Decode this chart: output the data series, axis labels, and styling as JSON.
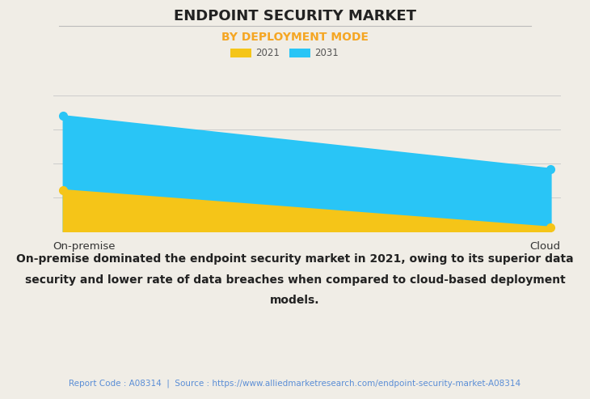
{
  "title": "ENDPOINT SECURITY MARKET",
  "subtitle": "BY DEPLOYMENT MODE",
  "title_fontsize": 13,
  "subtitle_fontsize": 10,
  "title_color": "#222222",
  "subtitle_color": "#F5A623",
  "background_color": "#F0EDE6",
  "plot_background_color": "#F0EDE6",
  "categories": [
    "On-premise",
    "Cloud"
  ],
  "series_2021": [
    3.5,
    0.35
  ],
  "series_2031": [
    9.8,
    5.3
  ],
  "color_2021": "#F5C518",
  "color_2031": "#29C5F6",
  "legend_labels": [
    "2021",
    "2031"
  ],
  "ylim": [
    0,
    11.5
  ],
  "grid_color": "#CCCCCC",
  "annotation_line1": "On-premise dominated the endpoint security market in 2021, owing to its superior data",
  "annotation_line2": "security and lower rate of data breaches when compared to cloud-based deployment",
  "annotation_line3": "models.",
  "annotation_fontsize": 10,
  "footer_text": "Report Code : A08314  |  Source : https://www.alliedmarketresearch.com/endpoint-security-market-A08314",
  "footer_color": "#5B8ED6",
  "footer_fontsize": 7.5,
  "marker_size": 7,
  "line_width": 1.5
}
